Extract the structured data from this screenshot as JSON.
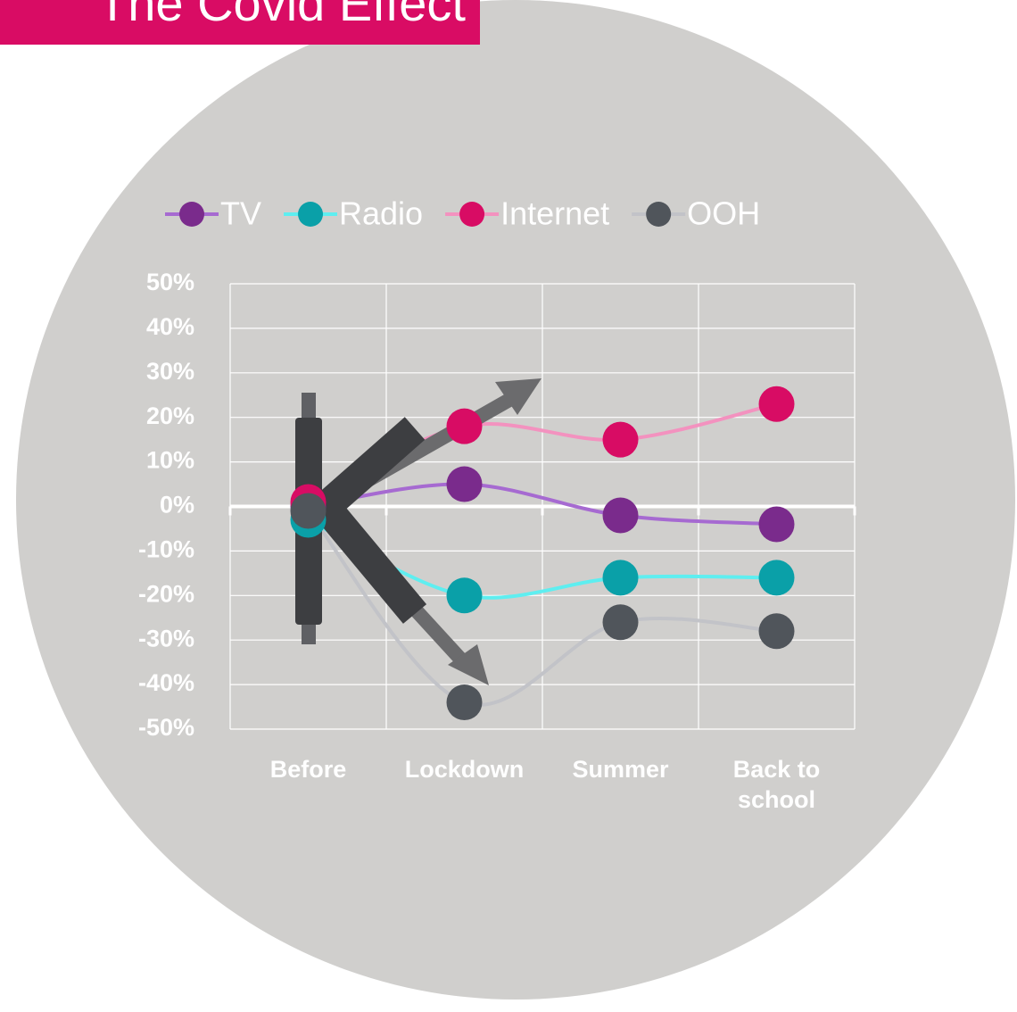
{
  "chart_data": {
    "type": "line",
    "title": "The Covid Effect",
    "categories": [
      "Before",
      "Lockdown",
      "Summer",
      "Back to school"
    ],
    "series": [
      {
        "name": "TV",
        "color": "#7a2b8c",
        "line_color": "#a66ad1",
        "values": [
          0,
          5,
          -2,
          -4
        ]
      },
      {
        "name": "Radio",
        "color": "#0aa0a8",
        "line_color": "#5eeef0",
        "values": [
          -3,
          -20,
          -16,
          -16
        ]
      },
      {
        "name": "Internet",
        "color": "#d80c64",
        "line_color": "#f392bf",
        "values": [
          1,
          18,
          15,
          23
        ]
      },
      {
        "name": "OOH",
        "color": "#50555b",
        "line_color": "#c2c3c8",
        "values": [
          -1,
          -44,
          -26,
          -28
        ]
      }
    ],
    "ylim": [
      -50,
      50
    ],
    "yticks": [
      {
        "value": -50,
        "label": "-50%"
      },
      {
        "value": -40,
        "label": "-40%"
      },
      {
        "value": -30,
        "label": "-30%"
      },
      {
        "value": -20,
        "label": "-20%"
      },
      {
        "value": -10,
        "label": "-10%"
      },
      {
        "value": 0,
        "label": "0%"
      },
      {
        "value": 10,
        "label": "10%"
      },
      {
        "value": 20,
        "label": "20%"
      },
      {
        "value": 30,
        "label": "30%"
      },
      {
        "value": 40,
        "label": "40%"
      },
      {
        "value": 50,
        "label": "50%"
      }
    ],
    "grid": true,
    "smooth": true,
    "legend": "top"
  }
}
